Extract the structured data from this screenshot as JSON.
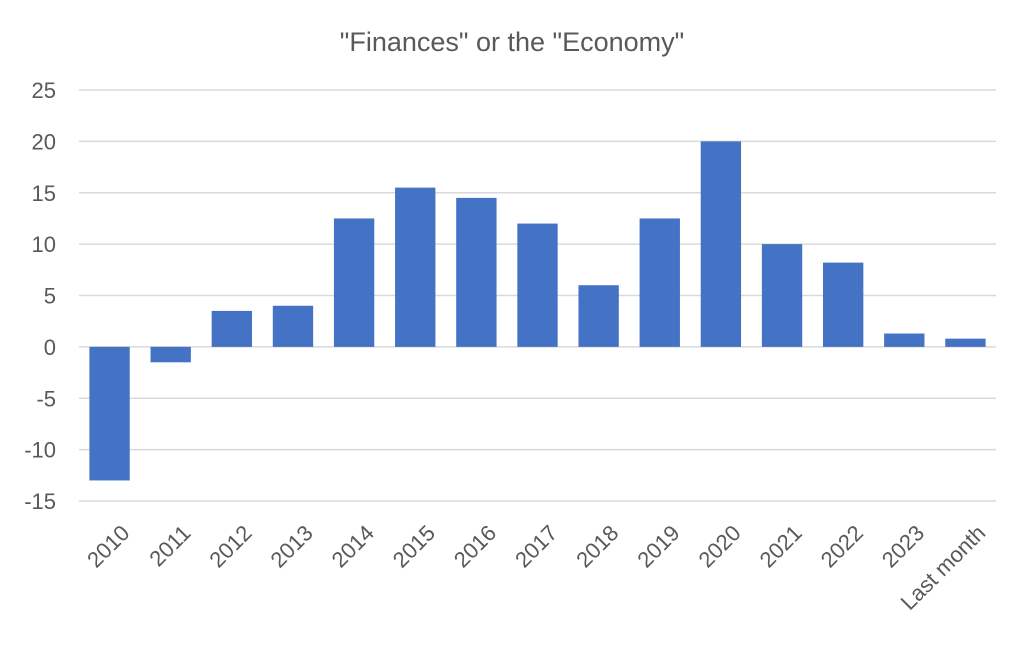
{
  "chart_data": {
    "type": "bar",
    "title": "\"Finances\" or the \"Economy\"",
    "xlabel": "",
    "ylabel": "",
    "categories": [
      "2010",
      "2011",
      "2012",
      "2013",
      "2014",
      "2015",
      "2016",
      "2017",
      "2018",
      "2019",
      "2020",
      "2021",
      "2022",
      "2023",
      "Last month"
    ],
    "values": [
      -13,
      -1.5,
      3.5,
      4,
      12.5,
      15.5,
      14.5,
      12,
      6,
      12.5,
      20,
      10,
      8.2,
      1.3,
      0.8
    ],
    "ylim": [
      -15,
      25
    ],
    "yticks": [
      25,
      20,
      15,
      10,
      5,
      0,
      -5,
      -10,
      -15
    ],
    "ytick_labels": [
      "25",
      "20",
      "15",
      "10",
      "5",
      "0",
      "-5",
      "-10",
      "-15"
    ],
    "grid": true,
    "legend": "none",
    "bar_color": "#4472C4"
  }
}
